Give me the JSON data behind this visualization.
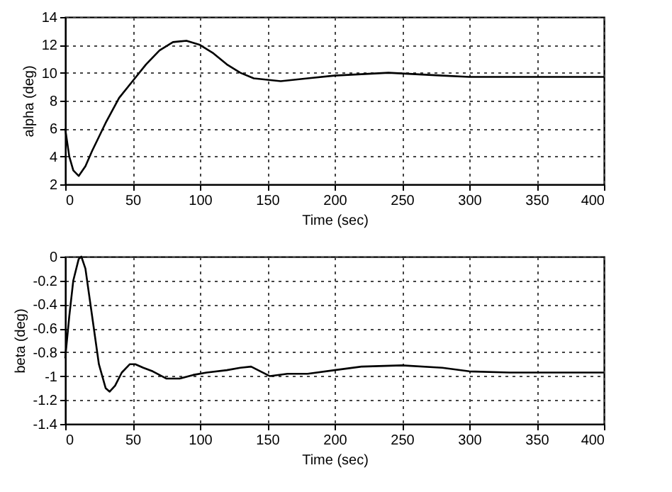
{
  "chart_data": [
    {
      "type": "line",
      "xlabel": "Time (sec)",
      "ylabel": "alpha (deg)",
      "xlim": [
        0,
        400
      ],
      "xticks": [
        0,
        50,
        100,
        150,
        200,
        250,
        300,
        350,
        400
      ],
      "ylim": [
        2,
        14
      ],
      "yticks": [
        2,
        4,
        6,
        8,
        10,
        12,
        14
      ],
      "grid": true,
      "line_style": "solid",
      "x": [
        0,
        3,
        6,
        10,
        15,
        20,
        30,
        40,
        50,
        60,
        70,
        80,
        90,
        100,
        110,
        120,
        130,
        140,
        150,
        160,
        170,
        180,
        200,
        220,
        240,
        260,
        280,
        300,
        330,
        360,
        400
      ],
      "series": [
        {
          "color": "#000000",
          "values": [
            6,
            4,
            3.0,
            2.6,
            3.3,
            4.4,
            6.4,
            8.2,
            9.4,
            10.6,
            11.6,
            12.2,
            12.3,
            12.0,
            11.4,
            10.6,
            10.0,
            9.6,
            9.5,
            9.4,
            9.5,
            9.6,
            9.8,
            9.9,
            10.0,
            9.9,
            9.8,
            9.7,
            9.7,
            9.7,
            9.7
          ]
        }
      ]
    },
    {
      "type": "line",
      "xlabel": "Time (sec)",
      "ylabel": "beta (deg)",
      "xlim": [
        0,
        400
      ],
      "xticks": [
        0,
        50,
        100,
        150,
        200,
        250,
        300,
        350,
        400
      ],
      "ylim": [
        -1.4,
        0
      ],
      "yticks": [
        -1.4,
        -1.2,
        -1,
        -0.8,
        -0.6,
        -0.4,
        -0.2,
        0
      ],
      "grid": true,
      "line_style": "solid",
      "x": [
        0,
        3,
        6,
        10,
        12,
        15,
        20,
        25,
        30,
        33,
        37,
        42,
        48,
        52,
        58,
        65,
        75,
        85,
        95,
        105,
        120,
        130,
        138,
        145,
        152,
        165,
        180,
        200,
        220,
        250,
        280,
        300,
        330,
        360,
        400
      ],
      "series": [
        {
          "color": "#000000",
          "values": [
            -0.85,
            -0.5,
            -0.2,
            -0.02,
            0.0,
            -0.1,
            -0.5,
            -0.9,
            -1.1,
            -1.13,
            -1.08,
            -0.97,
            -0.9,
            -0.9,
            -0.93,
            -0.96,
            -1.02,
            -1.02,
            -0.99,
            -0.97,
            -0.95,
            -0.93,
            -0.92,
            -0.96,
            -1.0,
            -0.98,
            -0.98,
            -0.95,
            -0.92,
            -0.91,
            -0.93,
            -0.96,
            -0.97,
            -0.97,
            -0.97
          ]
        }
      ]
    }
  ]
}
